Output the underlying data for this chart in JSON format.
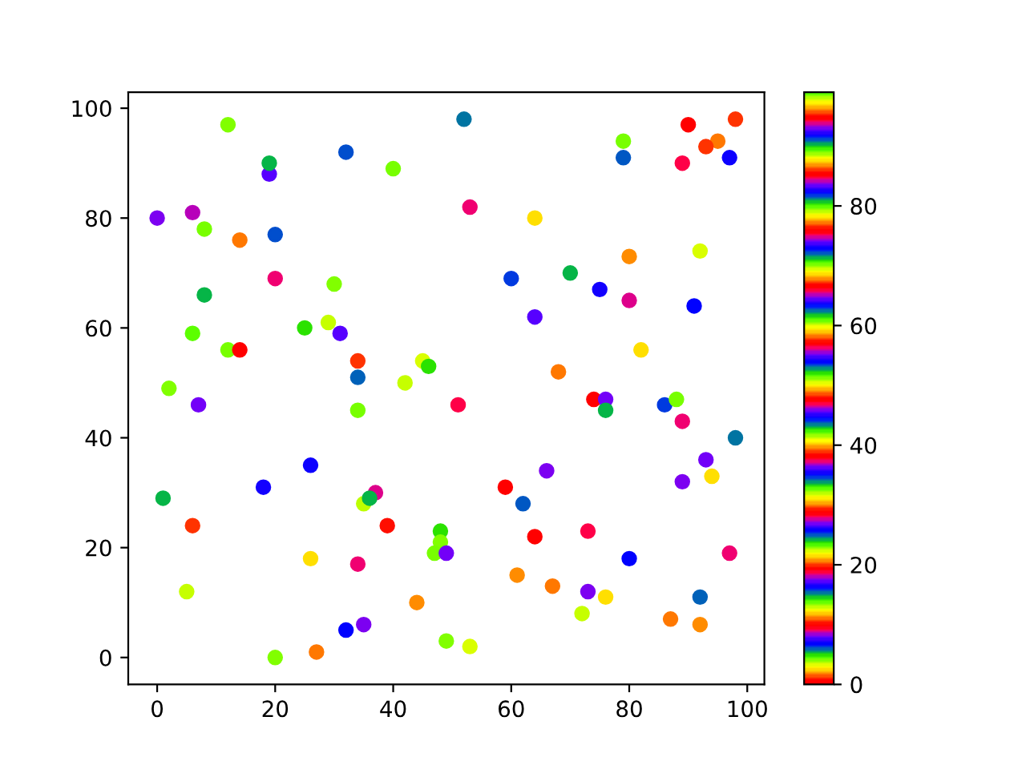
{
  "chart_data": {
    "type": "scatter",
    "marker": "circle",
    "x": [
      12,
      19,
      19,
      32,
      40,
      0,
      6,
      8,
      14,
      20,
      20,
      30,
      8,
      6,
      25,
      29,
      31,
      12,
      14,
      34,
      34,
      42,
      45,
      46,
      2,
      7,
      34,
      18,
      26,
      1,
      6,
      5,
      26,
      34,
      20,
      27,
      32,
      35,
      35,
      37,
      36,
      39,
      44,
      52,
      79,
      79,
      90,
      98,
      95,
      93,
      89,
      97,
      53,
      64,
      80,
      92,
      60,
      70,
      75,
      80,
      91,
      64,
      82,
      68,
      51,
      74,
      76,
      76,
      86,
      88,
      89,
      98,
      93,
      94,
      89,
      66,
      59,
      62,
      64,
      73,
      48,
      48,
      47,
      49,
      80,
      97,
      61,
      67,
      73,
      76,
      92,
      72,
      87,
      92,
      49,
      53
    ],
    "values": [
      97,
      88,
      90,
      92,
      89,
      80,
      81,
      78,
      76,
      77,
      69,
      68,
      66,
      59,
      60,
      61,
      59,
      56,
      56,
      54,
      51,
      50,
      54,
      53,
      49,
      46,
      45,
      31,
      35,
      29,
      24,
      12,
      18,
      17,
      0,
      1,
      5,
      6,
      28,
      30,
      29,
      24,
      10,
      98,
      94,
      91,
      97,
      98,
      94,
      93,
      90,
      91,
      82,
      80,
      73,
      74,
      69,
      70,
      67,
      65,
      64,
      62,
      56,
      52,
      46,
      47,
      47,
      45,
      46,
      47,
      43,
      40,
      36,
      33,
      32,
      34,
      31,
      28,
      22,
      23,
      23,
      21,
      19,
      19,
      18,
      19,
      15,
      13,
      12,
      11,
      11,
      8,
      7,
      6,
      3,
      2
    ],
    "cvalues": [
      3.9,
      64.3,
      24.3,
      91.2,
      70.2,
      45.7,
      65.2,
      70.2,
      77.3,
      91.2,
      37.4,
      3.9,
      24.3,
      32.7,
      4.7,
      12.8,
      64.3,
      70.2,
      47.6,
      86.2,
      5.9,
      12.8,
      22.3,
      4.7,
      3.9,
      26.8,
      70.2,
      82.7,
      16.4,
      24.3,
      86.2,
      12.8,
      21.3,
      37.4,
      3.9,
      77.3,
      6.9,
      45.7,
      79.1,
      93.7,
      24.3,
      10.4,
      20.6,
      15.4,
      70.2,
      72.2,
      47.6,
      86.2,
      77.3,
      86.2,
      46.9,
      16.4,
      37.4,
      21.3,
      20.6,
      22.3,
      81.7,
      24.3,
      82.7,
      93.7,
      6.9,
      64.3,
      21.3,
      77.3,
      46.9,
      47.6,
      26.8,
      24.3,
      81.7,
      70.2,
      37.4,
      15.4,
      26.8,
      21.3,
      45.7,
      45.7,
      47.6,
      72.2,
      47.6,
      46.9,
      4.7,
      3.9,
      70.2,
      26.8,
      6.9,
      37.4,
      20.6,
      77.3,
      45.7,
      21.3,
      5.9,
      12.8,
      77.3,
      20.6,
      3.9,
      22.3
    ],
    "xlim": [
      -4.9,
      102.9
    ],
    "ylim": [
      -4.9,
      102.9
    ],
    "xticks": [
      0,
      20,
      40,
      60,
      80,
      100
    ],
    "yticks": [
      0,
      20,
      40,
      60,
      80,
      100
    ],
    "clim": [
      0,
      99
    ],
    "cticks": [
      0,
      20,
      40,
      60,
      80
    ]
  }
}
